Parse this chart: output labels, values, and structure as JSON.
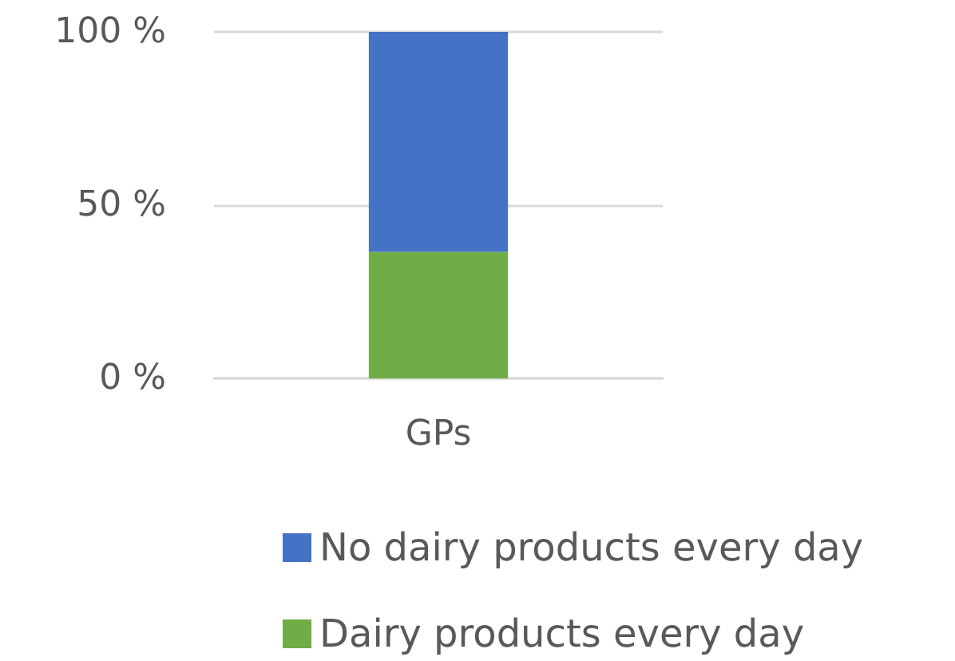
{
  "chart_data": {
    "type": "bar",
    "stacked": true,
    "categories": [
      "GPs"
    ],
    "series": [
      {
        "name": "Dairy products every day",
        "color": "#70ad47",
        "values": [
          36.5
        ]
      },
      {
        "name": "No dairy products every day",
        "color": "#4472c4",
        "values": [
          63.5
        ]
      }
    ],
    "ylim": [
      0,
      100
    ],
    "yticks": [
      {
        "value": 0,
        "label": "0 %"
      },
      {
        "value": 50,
        "label": "50 %"
      },
      {
        "value": 100,
        "label": "100 %"
      }
    ],
    "grid": "y",
    "legend": "bottom"
  }
}
